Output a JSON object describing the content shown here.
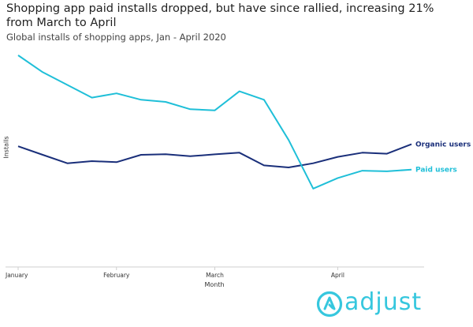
{
  "chart_data": {
    "type": "line",
    "title": "Shopping app paid installs dropped, but have since rallied, increasing 21% from March to April",
    "subtitle": "Global installs of shopping apps, Jan - April 2020",
    "xlabel": "Month",
    "ylabel": "Installs",
    "x_tick_labels": [
      "January",
      "February",
      "March",
      "April"
    ],
    "x_tick_positions": [
      0,
      4,
      8,
      13
    ],
    "ylim": [
      0,
      100
    ],
    "grid": false,
    "legend_placement": "inline at line ends",
    "series": [
      {
        "name": "Organic users",
        "color": "#1a2f7a",
        "values": [
          57,
          53,
          49,
          50,
          49.5,
          53,
          53.3,
          52.3,
          53.2,
          54,
          48,
          47,
          49,
          52,
          54,
          53.5,
          58
        ]
      },
      {
        "name": "Paid users",
        "color": "#1fbfd8",
        "values": [
          100,
          92,
          86,
          80,
          82,
          79,
          78,
          74.5,
          74,
          83,
          79,
          60,
          37,
          42,
          45.5,
          45.2,
          46
        ]
      }
    ]
  },
  "logo": {
    "text": "adjust",
    "color": "#36c7de"
  }
}
